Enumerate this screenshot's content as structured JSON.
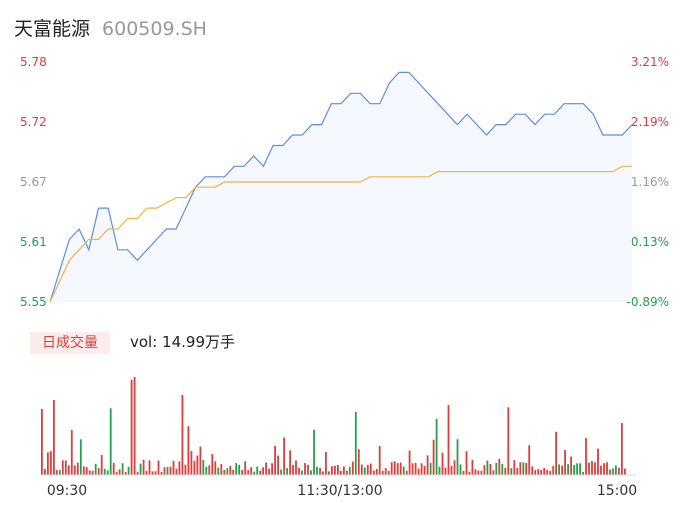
{
  "header": {
    "name": "天富能源",
    "code": "600509.SH"
  },
  "volume": {
    "label": "日成交量",
    "prefix": "vol: ",
    "value": "14.99万手"
  },
  "colors": {
    "price": "#5b8fe6",
    "avg": "#f0b53a",
    "up": "#e23b3b",
    "down": "#21a249",
    "flat": "#999999"
  },
  "chart_data": {
    "type": "line",
    "y_left_ticks": [
      "5.78",
      "5.72",
      "5.67",
      "5.61",
      "5.55"
    ],
    "y_right_ticks": [
      "3.21%",
      "2.19%",
      "1.16%",
      "0.13%",
      "-0.89%"
    ],
    "ylim": [
      5.55,
      5.78
    ],
    "x_ticks": [
      "09:30",
      "11:30/13:00",
      "15:00"
    ],
    "series": [
      {
        "values": [
          5.55,
          5.58,
          5.61,
          5.62,
          5.6,
          5.64,
          5.64,
          5.6,
          5.6,
          5.59,
          5.6,
          5.61,
          5.62,
          5.62,
          5.64,
          5.66,
          5.67,
          5.67,
          5.67,
          5.68,
          5.68,
          5.69,
          5.68,
          5.7,
          5.7,
          5.71,
          5.71,
          5.72,
          5.72,
          5.74,
          5.74,
          5.75,
          5.75,
          5.74,
          5.74,
          5.76,
          5.77,
          5.77,
          5.76,
          5.75,
          5.74,
          5.73,
          5.72,
          5.73,
          5.72,
          5.71,
          5.72,
          5.72,
          5.73,
          5.73,
          5.72,
          5.73,
          5.73,
          5.74,
          5.74,
          5.74,
          5.73,
          5.71,
          5.71,
          5.71,
          5.72
        ]
      },
      {
        "values": [
          5.55,
          5.57,
          5.59,
          5.6,
          5.61,
          5.61,
          5.62,
          5.62,
          5.63,
          5.63,
          5.64,
          5.64,
          5.645,
          5.65,
          5.65,
          5.66,
          5.66,
          5.66,
          5.665,
          5.665,
          5.665,
          5.665,
          5.665,
          5.665,
          5.665,
          5.665,
          5.665,
          5.665,
          5.665,
          5.665,
          5.665,
          5.665,
          5.665,
          5.67,
          5.67,
          5.67,
          5.67,
          5.67,
          5.67,
          5.67,
          5.675,
          5.675,
          5.675,
          5.675,
          5.675,
          5.675,
          5.675,
          5.675,
          5.675,
          5.675,
          5.675,
          5.675,
          5.675,
          5.675,
          5.675,
          5.675,
          5.675,
          5.675,
          5.675,
          5.68,
          5.68
        ]
      }
    ]
  }
}
